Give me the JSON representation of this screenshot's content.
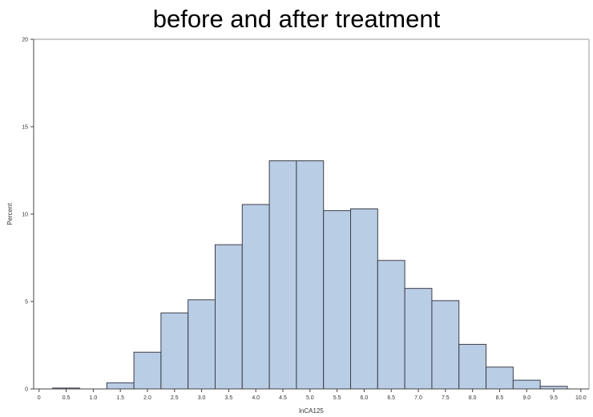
{
  "chart_data": {
    "type": "histogram",
    "title": "before and after treatment",
    "xlabel": "lnCA125",
    "ylabel": "Percent",
    "xlim": [
      -0.1,
      10.15
    ],
    "ylim": [
      0,
      20
    ],
    "x_ticks": [
      "0",
      "0.5",
      "1.0",
      "1.5",
      "2.0",
      "2.5",
      "3.0",
      "3.5",
      "4.0",
      "4.5",
      "5.0",
      "5.5",
      "6.0",
      "6.5",
      "7.0",
      "7.5",
      "8.0",
      "8.5",
      "9.0",
      "9.5",
      "10.0"
    ],
    "y_ticks": [
      "0",
      "5",
      "10",
      "15",
      "20"
    ],
    "bin_width": 0.5,
    "bins": [
      {
        "start": 0.25,
        "value": 0.05
      },
      {
        "start": 1.25,
        "value": 0.35
      },
      {
        "start": 1.75,
        "value": 2.1
      },
      {
        "start": 2.25,
        "value": 4.35
      },
      {
        "start": 2.75,
        "value": 5.1
      },
      {
        "start": 3.25,
        "value": 8.25
      },
      {
        "start": 3.75,
        "value": 10.55
      },
      {
        "start": 4.25,
        "value": 13.05
      },
      {
        "start": 4.75,
        "value": 13.05
      },
      {
        "start": 5.25,
        "value": 10.2
      },
      {
        "start": 5.75,
        "value": 10.3
      },
      {
        "start": 6.25,
        "value": 7.35
      },
      {
        "start": 6.75,
        "value": 5.75
      },
      {
        "start": 7.25,
        "value": 5.05
      },
      {
        "start": 7.75,
        "value": 2.55
      },
      {
        "start": 8.25,
        "value": 1.25
      },
      {
        "start": 8.75,
        "value": 0.5
      },
      {
        "start": 9.25,
        "value": 0.15
      }
    ],
    "bar_fill": "#b9cde5",
    "bar_stroke": "#3b3f4a",
    "grid": false
  }
}
